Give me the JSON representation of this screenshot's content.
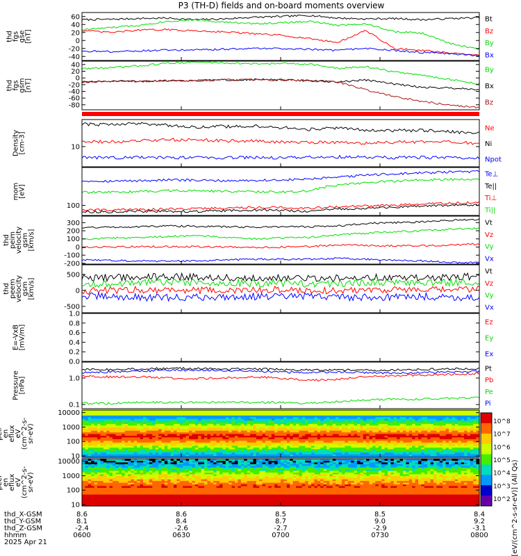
{
  "title": "P3 (TH-D) fields and on-board moments overview",
  "colors": {
    "black": "#000000",
    "red": "#ff0000",
    "green": "#00dd00",
    "blue": "#0000ff",
    "darkred": "#aa1111",
    "axis": "#000000"
  },
  "chart_data": [
    {
      "type": "line",
      "ylabel": [
        "thd",
        "fgs",
        "gse",
        "[nT]"
      ],
      "ylim": [
        -50,
        70
      ],
      "scale": "linear",
      "yticks": [
        60,
        40,
        20,
        0,
        -20,
        -40
      ],
      "series": [
        {
          "name": "Bt",
          "color": "#000000",
          "base": [
            52,
            53,
            55,
            56,
            52,
            54,
            58,
            60,
            63,
            56,
            54,
            55,
            52,
            55,
            57
          ]
        },
        {
          "name": "Bz",
          "color": "#ff0000",
          "base": [
            25,
            20,
            26,
            27,
            24,
            22,
            17,
            13,
            5,
            -5,
            25,
            -20,
            -25,
            -32,
            -38
          ]
        },
        {
          "name": "By",
          "color": "#00dd00",
          "base": [
            27,
            32,
            38,
            48,
            52,
            46,
            42,
            44,
            48,
            38,
            42,
            22,
            18,
            -8,
            -22
          ]
        },
        {
          "name": "Bx",
          "color": "#0000ff",
          "base": [
            -26,
            -28,
            -26,
            -24,
            -24,
            -22,
            -20,
            -20,
            -22,
            -25,
            -20,
            -25,
            -30,
            -33,
            -38
          ]
        }
      ]
    },
    {
      "type": "line",
      "ylabel": [
        "thd",
        "fgs",
        "gsm",
        "[nT]"
      ],
      "ylim": [
        -95,
        50
      ],
      "scale": "linear",
      "yticks": [
        40,
        20,
        0,
        -20,
        -40,
        -60,
        -80
      ],
      "series": [
        {
          "name": "By",
          "color": "#00dd00",
          "base": [
            28,
            30,
            36,
            44,
            47,
            45,
            42,
            43,
            42,
            28,
            34,
            18,
            8,
            -5,
            -18
          ]
        },
        {
          "name": "Bx",
          "color": "#000000",
          "base": [
            -12,
            -10,
            -10,
            -8,
            -8,
            -6,
            -5,
            -6,
            -8,
            -12,
            -6,
            -18,
            -28,
            -30,
            -34
          ]
        },
        {
          "name": "Bz",
          "color": "#aa1111",
          "base": [
            -12,
            -10,
            -10,
            -8,
            -8,
            -6,
            -5,
            -6,
            -8,
            -12,
            -35,
            -55,
            -70,
            -82,
            -88
          ]
        }
      ]
    },
    {
      "type": "line",
      "ylabel": [
        "Density",
        "[cm-3]"
      ],
      "ylim": [
        3,
        50
      ],
      "scale": "log",
      "yticks": [
        10
      ],
      "series": [
        {
          "name": "Ne",
          "color": "#ff0000",
          "base": [
            14,
            13,
            14,
            15,
            15,
            14,
            14,
            13,
            13,
            13,
            12,
            13,
            13,
            13,
            12
          ]
        },
        {
          "name": "Ni",
          "color": "#000000",
          "base": [
            38,
            37,
            40,
            36,
            32,
            33,
            34,
            31,
            28,
            30,
            27,
            26,
            26,
            24,
            22
          ]
        },
        {
          "name": "Npot",
          "color": "#0000ff",
          "base": [
            5.2,
            5.2,
            5.2,
            5.2,
            5.2,
            5.2,
            5.2,
            5.2,
            5.3,
            5.4,
            5.3,
            5.2,
            5.2,
            5.1,
            5.0
          ]
        }
      ]
    },
    {
      "type": "line",
      "ylabel": [
        "mom",
        "[eV]"
      ],
      "ylim": [
        45,
        2000
      ],
      "scale": "log",
      "yticks": [
        100
      ],
      "series": [
        {
          "name": "Te⊥",
          "color": "#0000ff",
          "base": [
            700,
            680,
            700,
            750,
            720,
            700,
            720,
            740,
            800,
            900,
            1100,
            1200,
            1300,
            1400,
            1450
          ]
        },
        {
          "name": "Te||",
          "color": "#000000",
          "base": [
            60,
            60,
            62,
            62,
            62,
            65,
            70,
            68,
            62,
            75,
            80,
            85,
            95,
            100,
            105
          ]
        },
        {
          "name": "Ti⊥",
          "color": "#ff0000",
          "base": [
            70,
            70,
            72,
            75,
            78,
            80,
            85,
            85,
            80,
            90,
            95,
            100,
            110,
            120,
            125
          ]
        },
        {
          "name": "Ti||",
          "color": "#00dd00",
          "base": [
            280,
            280,
            300,
            320,
            320,
            300,
            300,
            290,
            310,
            500,
            600,
            680,
            750,
            780,
            800
          ]
        }
      ]
    },
    {
      "type": "line",
      "ylabel": [
        "thd",
        "peim",
        "velocity",
        "gsm",
        "[km/s]"
      ],
      "ylim": [
        -210,
        380
      ],
      "scale": "linear",
      "yticks": [
        300,
        200,
        100,
        0,
        -100,
        -200
      ],
      "series": [
        {
          "name": "Vt",
          "color": "#000000",
          "base": [
            240,
            245,
            250,
            260,
            255,
            250,
            245,
            250,
            250,
            260,
            290,
            300,
            310,
            330,
            340
          ]
        },
        {
          "name": "Vz",
          "color": "#ff0000",
          "base": [
            -5,
            0,
            5,
            5,
            5,
            0,
            -5,
            0,
            5,
            25,
            20,
            15,
            15,
            25,
            40
          ]
        },
        {
          "name": "Vy",
          "color": "#00dd00",
          "base": [
            100,
            110,
            120,
            130,
            140,
            120,
            100,
            110,
            120,
            150,
            170,
            190,
            200,
            220,
            230
          ]
        },
        {
          "name": "Vx",
          "color": "#0000ff",
          "base": [
            -160,
            -165,
            -170,
            -175,
            -170,
            -160,
            -150,
            -150,
            -150,
            -140,
            -150,
            -160,
            -170,
            -190,
            -195
          ]
        }
      ]
    },
    {
      "type": "line",
      "ylabel": [
        "thd",
        "peem",
        "velocity",
        "gsm",
        "[km/s]"
      ],
      "ylim": [
        -700,
        800
      ],
      "scale": "linear",
      "yticks": [
        500,
        0,
        -500
      ],
      "series": [
        {
          "name": "Vt",
          "color": "#000000",
          "base": [
            380,
            400,
            420,
            430,
            420,
            400,
            380,
            400,
            360,
            380,
            420,
            400,
            380,
            400,
            450
          ]
        },
        {
          "name": "Vz",
          "color": "#ff0000",
          "base": [
            -20,
            0,
            20,
            20,
            0,
            -20,
            0,
            20,
            0,
            -20,
            40,
            20,
            0,
            20,
            40
          ]
        },
        {
          "name": "Vy",
          "color": "#00dd00",
          "base": [
            180,
            200,
            250,
            260,
            250,
            240,
            220,
            230,
            200,
            220,
            260,
            250,
            230,
            250,
            280
          ]
        },
        {
          "name": "Vx",
          "color": "#0000ff",
          "base": [
            -180,
            -200,
            -220,
            -230,
            -220,
            -200,
            -190,
            -200,
            -180,
            -200,
            -220,
            -200,
            -190,
            -210,
            -230
          ]
        }
      ]
    },
    {
      "type": "line",
      "ylabel": [
        "E=-VxB",
        "[mV/m]"
      ],
      "ylim": [
        0,
        1
      ],
      "scale": "linear",
      "yticks": [
        "1.0",
        "0.8",
        "0.6",
        "0.4",
        "0.2",
        "0.0"
      ],
      "series": [
        {
          "name": "Ez",
          "color": "#ff0000",
          "base": []
        },
        {
          "name": "Ey",
          "color": "#00dd00",
          "base": []
        },
        {
          "name": "Ex",
          "color": "#0000ff",
          "base": []
        }
      ]
    },
    {
      "type": "line",
      "ylabel": [
        "Pressure",
        "[nPa]"
      ],
      "ylim": [
        0.07,
        4
      ],
      "scale": "log",
      "yticks": [
        "1.0",
        "0.1"
      ],
      "series": [
        {
          "name": "Pt",
          "color": "#000000",
          "base": [
            2.1,
            2.1,
            2.2,
            2.3,
            2.3,
            2.2,
            2.2,
            2.1,
            2.0,
            2.0,
            2.0,
            2.0,
            2.1,
            2.2,
            2.3
          ]
        },
        {
          "name": "Pb",
          "color": "#ff0000",
          "base": [
            1.2,
            1.1,
            1.1,
            1.0,
            0.95,
            1.0,
            1.1,
            1.0,
            0.8,
            0.9,
            1.1,
            1.2,
            1.3,
            1.4,
            1.5
          ]
        },
        {
          "name": "Pe",
          "color": "#00dd00",
          "base": [
            0.11,
            0.11,
            0.12,
            0.12,
            0.12,
            0.12,
            0.12,
            0.12,
            0.11,
            0.13,
            0.15,
            0.16,
            0.16,
            0.17,
            0.18
          ]
        },
        {
          "name": "Pi",
          "color": "#0000ff",
          "base": [
            1.6,
            1.7,
            1.8,
            2.0,
            2.0,
            1.9,
            1.8,
            1.7,
            1.6,
            1.7,
            1.6,
            1.5,
            1.6,
            1.7,
            1.8
          ]
        }
      ]
    },
    {
      "type": "heatmap",
      "ylabel": [
        "thd",
        "peir",
        "en",
        "eflux",
        "eV",
        "(cm^2-s-",
        "sr-eV)"
      ],
      "ylim": [
        8,
        15000
      ],
      "scale": "log",
      "yticks": [
        "10000",
        "1000",
        "100",
        "10"
      ]
    },
    {
      "type": "heatmap",
      "ylabel": [
        "thd",
        "peer",
        "en",
        "eflux",
        "eV",
        "(cm^2-s-",
        "sr-eV)"
      ],
      "ylim": [
        8,
        15000
      ],
      "scale": "log",
      "yticks": [
        "10000",
        "1000",
        "100",
        "10"
      ]
    }
  ],
  "colorbar": {
    "label": "[eV/(cm^2-s-sr-eV)] (All Qs)",
    "ticks": [
      "10^8",
      "10^7",
      "10^6",
      "10^5",
      "10^4",
      "10^3",
      "10^2"
    ]
  },
  "xaxis": {
    "rows": [
      {
        "label": "thd_X-GSM",
        "values": [
          "8.6",
          "8.6",
          "8.5",
          "8.5",
          "8.4"
        ]
      },
      {
        "label": "thd_Y-GSM",
        "values": [
          "8.1",
          "8.4",
          "8.7",
          "9.0",
          "9.2"
        ]
      },
      {
        "label": "thd_Z-GSM",
        "values": [
          "-2.4",
          "-2.6",
          "-2.7",
          "-2.9",
          "-3.1"
        ]
      },
      {
        "label": "hhmm",
        "values": [
          "0600",
          "0630",
          "0700",
          "0730",
          "0800"
        ]
      }
    ],
    "date": "2025 Apr 21"
  }
}
